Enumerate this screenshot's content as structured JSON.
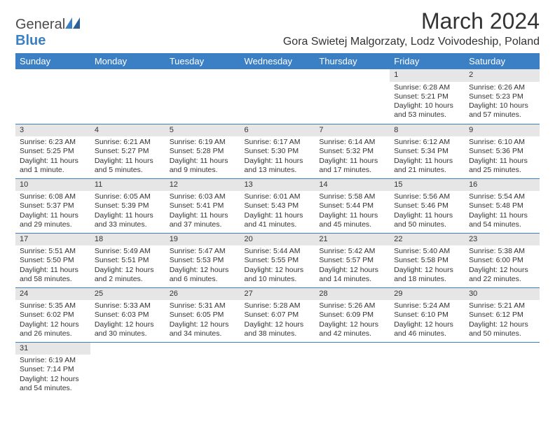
{
  "logo": {
    "text_a": "General",
    "text_b": "Blue"
  },
  "title": "March 2024",
  "location": "Gora Swietej Malgorzaty, Lodz Voivodeship, Poland",
  "colors": {
    "header_bg": "#3b7fc4",
    "daynum_bg": "#e6e6e6",
    "border": "#3b7fc4"
  },
  "day_headers": [
    "Sunday",
    "Monday",
    "Tuesday",
    "Wednesday",
    "Thursday",
    "Friday",
    "Saturday"
  ],
  "weeks": [
    [
      null,
      null,
      null,
      null,
      null,
      {
        "n": "1",
        "sr": "6:28 AM",
        "ss": "5:21 PM",
        "dl": "10 hours and 53 minutes."
      },
      {
        "n": "2",
        "sr": "6:26 AM",
        "ss": "5:23 PM",
        "dl": "10 hours and 57 minutes."
      }
    ],
    [
      {
        "n": "3",
        "sr": "6:23 AM",
        "ss": "5:25 PM",
        "dl": "11 hours and 1 minute."
      },
      {
        "n": "4",
        "sr": "6:21 AM",
        "ss": "5:27 PM",
        "dl": "11 hours and 5 minutes."
      },
      {
        "n": "5",
        "sr": "6:19 AM",
        "ss": "5:28 PM",
        "dl": "11 hours and 9 minutes."
      },
      {
        "n": "6",
        "sr": "6:17 AM",
        "ss": "5:30 PM",
        "dl": "11 hours and 13 minutes."
      },
      {
        "n": "7",
        "sr": "6:14 AM",
        "ss": "5:32 PM",
        "dl": "11 hours and 17 minutes."
      },
      {
        "n": "8",
        "sr": "6:12 AM",
        "ss": "5:34 PM",
        "dl": "11 hours and 21 minutes."
      },
      {
        "n": "9",
        "sr": "6:10 AM",
        "ss": "5:36 PM",
        "dl": "11 hours and 25 minutes."
      }
    ],
    [
      {
        "n": "10",
        "sr": "6:08 AM",
        "ss": "5:37 PM",
        "dl": "11 hours and 29 minutes."
      },
      {
        "n": "11",
        "sr": "6:05 AM",
        "ss": "5:39 PM",
        "dl": "11 hours and 33 minutes."
      },
      {
        "n": "12",
        "sr": "6:03 AM",
        "ss": "5:41 PM",
        "dl": "11 hours and 37 minutes."
      },
      {
        "n": "13",
        "sr": "6:01 AM",
        "ss": "5:43 PM",
        "dl": "11 hours and 41 minutes."
      },
      {
        "n": "14",
        "sr": "5:58 AM",
        "ss": "5:44 PM",
        "dl": "11 hours and 45 minutes."
      },
      {
        "n": "15",
        "sr": "5:56 AM",
        "ss": "5:46 PM",
        "dl": "11 hours and 50 minutes."
      },
      {
        "n": "16",
        "sr": "5:54 AM",
        "ss": "5:48 PM",
        "dl": "11 hours and 54 minutes."
      }
    ],
    [
      {
        "n": "17",
        "sr": "5:51 AM",
        "ss": "5:50 PM",
        "dl": "11 hours and 58 minutes."
      },
      {
        "n": "18",
        "sr": "5:49 AM",
        "ss": "5:51 PM",
        "dl": "12 hours and 2 minutes."
      },
      {
        "n": "19",
        "sr": "5:47 AM",
        "ss": "5:53 PM",
        "dl": "12 hours and 6 minutes."
      },
      {
        "n": "20",
        "sr": "5:44 AM",
        "ss": "5:55 PM",
        "dl": "12 hours and 10 minutes."
      },
      {
        "n": "21",
        "sr": "5:42 AM",
        "ss": "5:57 PM",
        "dl": "12 hours and 14 minutes."
      },
      {
        "n": "22",
        "sr": "5:40 AM",
        "ss": "5:58 PM",
        "dl": "12 hours and 18 minutes."
      },
      {
        "n": "23",
        "sr": "5:38 AM",
        "ss": "6:00 PM",
        "dl": "12 hours and 22 minutes."
      }
    ],
    [
      {
        "n": "24",
        "sr": "5:35 AM",
        "ss": "6:02 PM",
        "dl": "12 hours and 26 minutes."
      },
      {
        "n": "25",
        "sr": "5:33 AM",
        "ss": "6:03 PM",
        "dl": "12 hours and 30 minutes."
      },
      {
        "n": "26",
        "sr": "5:31 AM",
        "ss": "6:05 PM",
        "dl": "12 hours and 34 minutes."
      },
      {
        "n": "27",
        "sr": "5:28 AM",
        "ss": "6:07 PM",
        "dl": "12 hours and 38 minutes."
      },
      {
        "n": "28",
        "sr": "5:26 AM",
        "ss": "6:09 PM",
        "dl": "12 hours and 42 minutes."
      },
      {
        "n": "29",
        "sr": "5:24 AM",
        "ss": "6:10 PM",
        "dl": "12 hours and 46 minutes."
      },
      {
        "n": "30",
        "sr": "5:21 AM",
        "ss": "6:12 PM",
        "dl": "12 hours and 50 minutes."
      }
    ],
    [
      {
        "n": "31",
        "sr": "6:19 AM",
        "ss": "7:14 PM",
        "dl": "12 hours and 54 minutes."
      },
      null,
      null,
      null,
      null,
      null,
      null
    ]
  ],
  "labels": {
    "sunrise": "Sunrise:",
    "sunset": "Sunset:",
    "daylight": "Daylight:"
  }
}
